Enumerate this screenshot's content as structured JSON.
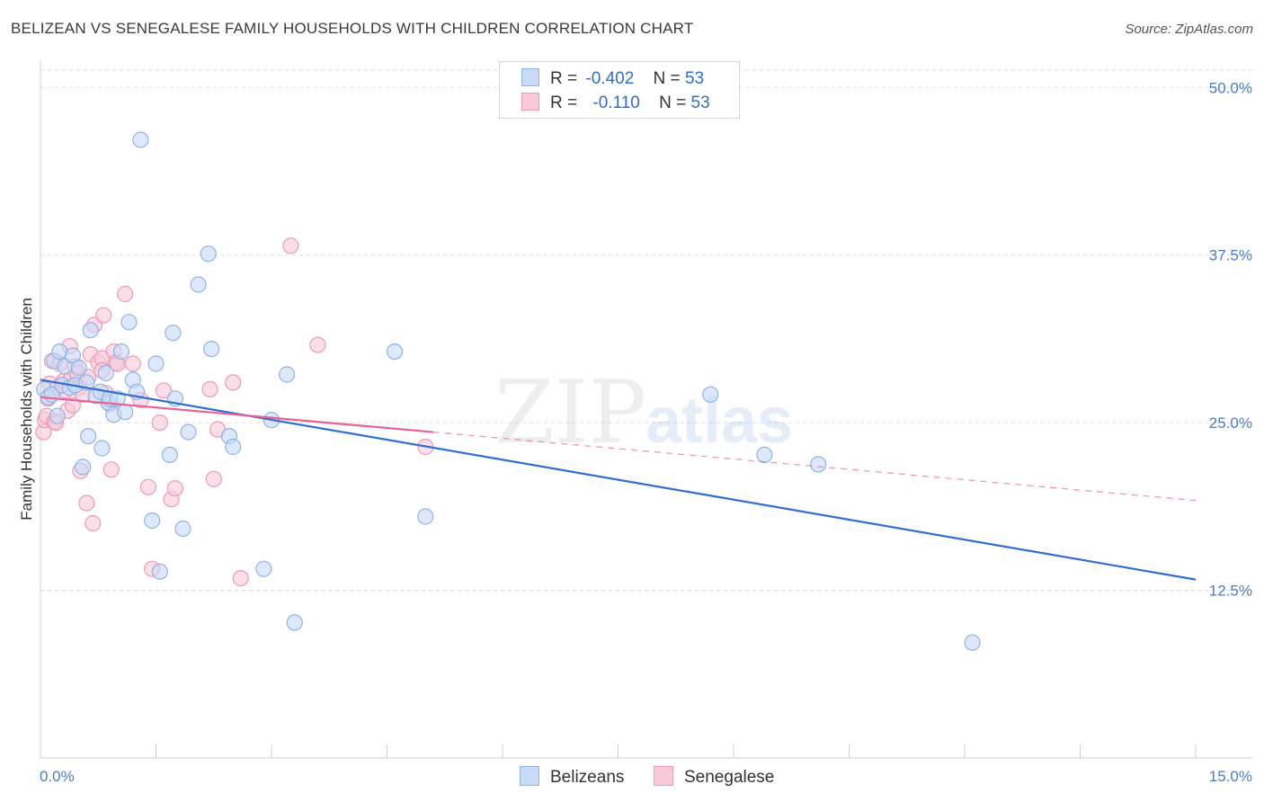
{
  "header": {
    "title": "BELIZEAN VS SENEGALESE FAMILY HOUSEHOLDS WITH CHILDREN CORRELATION CHART",
    "source": "Source: ZipAtlas.com"
  },
  "watermark": {
    "zip": "ZIP",
    "atlas": "atlas"
  },
  "legend": {
    "row1": {
      "r_label": "R =",
      "r_value": "-0.402",
      "n_label": "N =",
      "n_value": "53"
    },
    "row2": {
      "r_label": "R =",
      "r_value": "-0.110",
      "n_label": "N =",
      "n_value": "53"
    }
  },
  "chart_data": {
    "type": "scatter",
    "title": "BELIZEAN VS SENEGALESE FAMILY HOUSEHOLDS WITH CHILDREN CORRELATION CHART",
    "xlabel": "",
    "ylabel": "Family Households with Children",
    "xlim": [
      0,
      15
    ],
    "ylim": [
      0,
      52.5
    ],
    "x_tick_labels": [
      "0.0%",
      "15.0%"
    ],
    "y_ticks": [
      12.5,
      25.0,
      37.5,
      50.0
    ],
    "y_tick_labels": [
      "12.5%",
      "25.0%",
      "37.5%",
      "50.0%"
    ],
    "grid": "horizontal dashed",
    "legend_placement": "bottom-center",
    "series": [
      {
        "name": "Belizeans",
        "color": "#8fb4e8",
        "fill": "#c7dbf6",
        "line_color": "#2f6fd0",
        "trend": {
          "x": [
            0.0,
            15.0
          ],
          "y": [
            28.2,
            13.3
          ]
        },
        "points": [
          [
            0.05,
            27.5
          ],
          [
            0.1,
            26.9
          ],
          [
            0.15,
            27.1
          ],
          [
            0.18,
            29.6
          ],
          [
            0.22,
            25.5
          ],
          [
            0.25,
            30.3
          ],
          [
            0.28,
            27.8
          ],
          [
            0.32,
            29.2
          ],
          [
            0.38,
            27.6
          ],
          [
            0.42,
            30.0
          ],
          [
            0.45,
            27.8
          ],
          [
            0.5,
            29.1
          ],
          [
            0.55,
            21.7
          ],
          [
            0.6,
            28.0
          ],
          [
            0.62,
            24.0
          ],
          [
            0.65,
            31.9
          ],
          [
            0.72,
            27.0
          ],
          [
            0.78,
            27.3
          ],
          [
            0.8,
            23.1
          ],
          [
            0.85,
            28.7
          ],
          [
            0.88,
            26.5
          ],
          [
            0.9,
            26.8
          ],
          [
            0.95,
            25.6
          ],
          [
            1.0,
            26.8
          ],
          [
            1.05,
            30.3
          ],
          [
            1.1,
            25.8
          ],
          [
            1.15,
            32.5
          ],
          [
            1.2,
            28.2
          ],
          [
            1.25,
            27.3
          ],
          [
            1.3,
            46.1
          ],
          [
            1.45,
            17.7
          ],
          [
            1.5,
            29.4
          ],
          [
            1.55,
            13.9
          ],
          [
            1.68,
            22.6
          ],
          [
            1.72,
            31.7
          ],
          [
            1.75,
            26.8
          ],
          [
            1.85,
            17.1
          ],
          [
            1.92,
            24.3
          ],
          [
            2.05,
            35.3
          ],
          [
            2.18,
            37.6
          ],
          [
            2.22,
            30.5
          ],
          [
            2.45,
            24.0
          ],
          [
            2.5,
            23.2
          ],
          [
            2.9,
            14.1
          ],
          [
            3.0,
            25.2
          ],
          [
            3.2,
            28.6
          ],
          [
            3.3,
            10.1
          ],
          [
            4.6,
            30.3
          ],
          [
            5.0,
            18.0
          ],
          [
            8.7,
            27.1
          ],
          [
            9.4,
            22.6
          ],
          [
            10.1,
            21.9
          ],
          [
            12.1,
            8.6
          ]
        ]
      },
      {
        "name": "Senegalese",
        "color": "#ef9ab5",
        "fill": "#f8cad8",
        "line_color": "#e8609a",
        "trend": {
          "x": [
            0.0,
            5.1
          ],
          "y": [
            26.9,
            24.3
          ]
        },
        "trend_ext": {
          "x": [
            5.1,
            15.0
          ],
          "y": [
            24.3,
            19.2
          ]
        },
        "points": [
          [
            0.04,
            24.3
          ],
          [
            0.06,
            25.2
          ],
          [
            0.08,
            25.5
          ],
          [
            0.1,
            26.8
          ],
          [
            0.12,
            27.9
          ],
          [
            0.15,
            29.6
          ],
          [
            0.18,
            25.1
          ],
          [
            0.22,
            27.6
          ],
          [
            0.25,
            29.4
          ],
          [
            0.3,
            28.1
          ],
          [
            0.32,
            27.4
          ],
          [
            0.35,
            25.9
          ],
          [
            0.38,
            30.7
          ],
          [
            0.4,
            28.3
          ],
          [
            0.42,
            26.3
          ],
          [
            0.45,
            29.2
          ],
          [
            0.48,
            28.7
          ],
          [
            0.5,
            27.6
          ],
          [
            0.52,
            21.4
          ],
          [
            0.55,
            27.1
          ],
          [
            0.6,
            19.0
          ],
          [
            0.62,
            28.4
          ],
          [
            0.65,
            30.1
          ],
          [
            0.68,
            17.5
          ],
          [
            0.7,
            32.3
          ],
          [
            0.75,
            29.5
          ],
          [
            0.8,
            29.8
          ],
          [
            0.8,
            28.9
          ],
          [
            0.82,
            33.0
          ],
          [
            0.85,
            27.2
          ],
          [
            0.9,
            26.4
          ],
          [
            0.92,
            21.5
          ],
          [
            0.95,
            30.3
          ],
          [
            0.98,
            29.5
          ],
          [
            1.0,
            29.4
          ],
          [
            1.1,
            34.6
          ],
          [
            1.2,
            29.4
          ],
          [
            1.3,
            26.7
          ],
          [
            1.4,
            20.2
          ],
          [
            1.45,
            14.1
          ],
          [
            1.55,
            25.0
          ],
          [
            1.6,
            27.4
          ],
          [
            1.7,
            19.3
          ],
          [
            1.75,
            20.1
          ],
          [
            2.2,
            27.5
          ],
          [
            2.25,
            20.8
          ],
          [
            2.3,
            24.5
          ],
          [
            2.5,
            28.0
          ],
          [
            2.6,
            13.4
          ],
          [
            3.25,
            38.2
          ],
          [
            3.6,
            30.8
          ],
          [
            5.0,
            23.2
          ],
          [
            0.2,
            25.0
          ]
        ]
      }
    ]
  },
  "bottom_legend": {
    "item1": "Belizeans",
    "item2": "Senegalese"
  }
}
